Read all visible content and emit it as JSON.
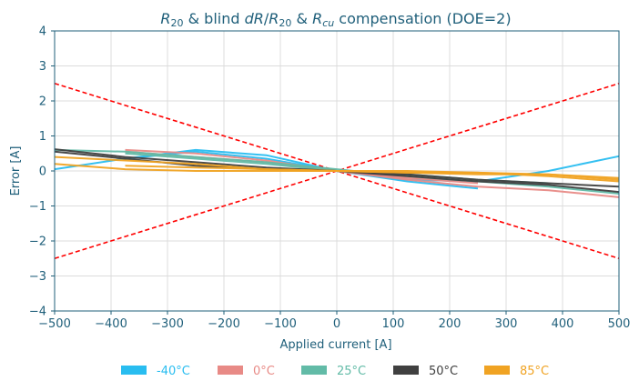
{
  "chart_data": {
    "type": "line",
    "title_parts": [
      {
        "t": "R",
        "style": "italic"
      },
      {
        "t": "20",
        "style": "sub"
      },
      {
        "t": " & blind ",
        "style": "normal"
      },
      {
        "t": "dR",
        "style": "italic"
      },
      {
        "t": "/",
        "style": "normal"
      },
      {
        "t": "R",
        "style": "italic"
      },
      {
        "t": "20",
        "style": "sub"
      },
      {
        "t": " & ",
        "style": "normal"
      },
      {
        "t": "R",
        "style": "italic"
      },
      {
        "t": "cu",
        "style": "subitalic"
      },
      {
        "t": " compensation (DOE=2)",
        "style": "normal"
      }
    ],
    "xlabel": "Applied current [A]",
    "ylabel": "Error [A]",
    "xlim": [
      -500,
      500
    ],
    "ylim": [
      -4,
      4
    ],
    "xticks": [
      -500,
      -400,
      -300,
      -200,
      -100,
      0,
      100,
      200,
      300,
      400,
      500
    ],
    "yticks": [
      -4,
      -3,
      -2,
      -1,
      0,
      1,
      2,
      3,
      4
    ],
    "xtick_labels": [
      "−500",
      "−400",
      "−300",
      "−200",
      "−100",
      "0",
      "100",
      "200",
      "300",
      "400",
      "500"
    ],
    "ytick_labels": [
      "−4",
      "−3",
      "−2",
      "−1",
      "0",
      "1",
      "2",
      "3",
      "4"
    ],
    "grid": true,
    "legend_position": "bottom",
    "limits": [
      {
        "x": [
          -500,
          500
        ],
        "y": [
          2.5,
          -2.5
        ],
        "color": "#ff0000",
        "style": "dashed"
      },
      {
        "x": [
          -500,
          500
        ],
        "y": [
          -2.5,
          2.5
        ],
        "color": "#ff0000",
        "style": "dashed"
      }
    ],
    "series": [
      {
        "name": "-40°C",
        "color": "#29bdf0",
        "lines": [
          {
            "x": [
              -500,
              -375,
              -250,
              -125,
              0,
              125,
              250
            ],
            "y": [
              0.05,
              0.35,
              0.6,
              0.45,
              0.0,
              -0.3,
              -0.5
            ]
          },
          {
            "x": [
              -375,
              -250,
              -125,
              0,
              125,
              250,
              375,
              500
            ],
            "y": [
              0.35,
              0.55,
              0.35,
              0.0,
              -0.25,
              -0.3,
              0.0,
              0.42
            ]
          }
        ]
      },
      {
        "name": "0°C",
        "color": "#e88a86",
        "lines": [
          {
            "x": [
              -375,
              -250,
              -125,
              0,
              125,
              250,
              375,
              500
            ],
            "y": [
              0.6,
              0.5,
              0.3,
              0.0,
              -0.25,
              -0.45,
              -0.55,
              -0.75
            ]
          },
          {
            "x": [
              -375,
              -250,
              -125,
              0,
              125,
              250
            ],
            "y": [
              0.55,
              0.4,
              0.25,
              0.0,
              -0.2,
              -0.35
            ]
          }
        ]
      },
      {
        "name": "25°C",
        "color": "#62bba7",
        "lines": [
          {
            "x": [
              -500,
              -375,
              -250,
              -125,
              0,
              125,
              250,
              375,
              500
            ],
            "y": [
              0.6,
              0.55,
              0.4,
              0.25,
              0.05,
              -0.15,
              -0.3,
              -0.45,
              -0.65
            ]
          },
          {
            "x": [
              -375,
              -250,
              -125,
              0,
              125,
              250,
              375
            ],
            "y": [
              0.5,
              0.35,
              0.2,
              0.0,
              -0.1,
              -0.25,
              -0.35
            ]
          }
        ]
      },
      {
        "name": "50°C",
        "color": "#404040",
        "lines": [
          {
            "x": [
              -500,
              -375,
              -250,
              -125,
              0,
              125,
              250,
              375,
              500
            ],
            "y": [
              0.62,
              0.4,
              0.25,
              0.1,
              0.0,
              -0.1,
              -0.25,
              -0.35,
              -0.45
            ]
          },
          {
            "x": [
              -500,
              -375,
              -250,
              -125,
              0,
              125,
              250,
              375,
              500
            ],
            "y": [
              0.55,
              0.35,
              0.15,
              0.05,
              0.0,
              -0.15,
              -0.3,
              -0.4,
              -0.6
            ]
          }
        ]
      },
      {
        "name": "85°C",
        "color": "#f0a323",
        "lines": [
          {
            "x": [
              -500,
              -375,
              -250,
              -125,
              0,
              125,
              250,
              375,
              500
            ],
            "y": [
              0.4,
              0.3,
              0.2,
              0.05,
              0.0,
              -0.05,
              -0.1,
              -0.1,
              -0.25
            ]
          },
          {
            "x": [
              -500,
              -375,
              -250,
              -125,
              0,
              125,
              250,
              375,
              500
            ],
            "y": [
              0.2,
              0.05,
              0.0,
              0.0,
              0.0,
              -0.05,
              -0.05,
              -0.1,
              -0.2
            ]
          },
          {
            "x": [
              -375,
              -250,
              -125,
              0,
              125,
              250,
              375,
              500
            ],
            "y": [
              0.15,
              0.1,
              0.05,
              0.0,
              0.0,
              -0.05,
              -0.15,
              -0.3
            ]
          }
        ]
      }
    ]
  }
}
